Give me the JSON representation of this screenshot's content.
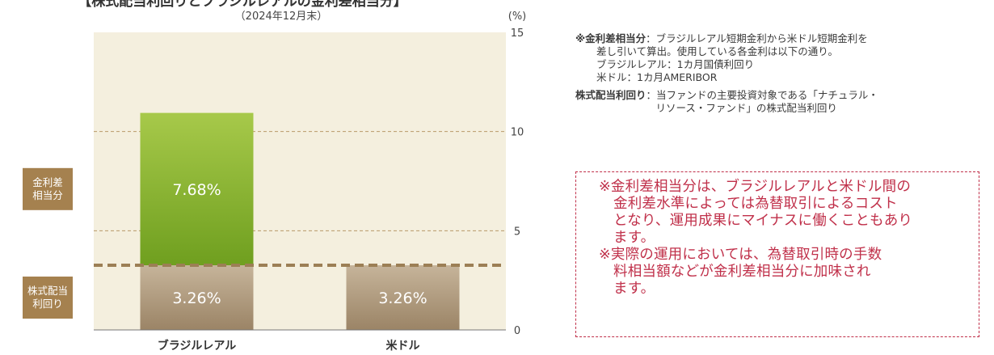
{
  "header": {
    "title": "【株式配当利回りとブラジルレアルの金利差相当分】",
    "date": "（2024年12月末）"
  },
  "chart_data": {
    "type": "bar",
    "stacked": true,
    "categories": [
      "ブラジルレアル",
      "米ドル"
    ],
    "series": [
      {
        "name": "株式配当利回り",
        "values": [
          3.26,
          3.26
        ],
        "value_labels": [
          "3.26%",
          "3.26%"
        ],
        "color": "#a58a6e"
      },
      {
        "name": "金利差相当分",
        "values": [
          7.68,
          0
        ],
        "value_labels": [
          "7.68%",
          ""
        ],
        "color": "#8ab92e"
      }
    ],
    "y_axis": {
      "label": "(%)",
      "min": 0,
      "max": 15,
      "ticks": [
        "0",
        "5",
        "10",
        "15"
      ],
      "position": "right"
    },
    "grid": true,
    "reference_line": {
      "value": 3.26,
      "style": "dashed"
    },
    "side_labels": [
      {
        "text": [
          "金利差",
          "相当分"
        ],
        "color": "#a5814f"
      },
      {
        "text": [
          "株式配当",
          "利回り"
        ],
        "color": "#a5814f"
      }
    ]
  },
  "notes": {
    "note1_key": "※金利差相当分",
    "note1_lines": [
      "：ブラジルレアル短期金利から米ドル短期金利を",
      "差し引いて算出。使用している各金利は以下の通り。",
      "ブラジルレアル：1カ月国債利回り",
      "米ドル：1カ月AMERIBOR"
    ],
    "note2_key": "株式配当利回り",
    "note2_lines": [
      "：当ファンドの主要投資対象である「ナチュラル・",
      "リソース・ファンド」の株式配当利回り"
    ]
  },
  "warning": {
    "lines": [
      "※金利差相当分は、ブラジルレアルと米ドル間の",
      "金利差水準によっては為替取引によるコスト",
      "となり、運用成果にマイナスに働くこともあり",
      "ます。",
      "※実際の運用においては、為替取引時の手数",
      "料相当額などが金利差相当分に加味され",
      "ます。"
    ]
  }
}
